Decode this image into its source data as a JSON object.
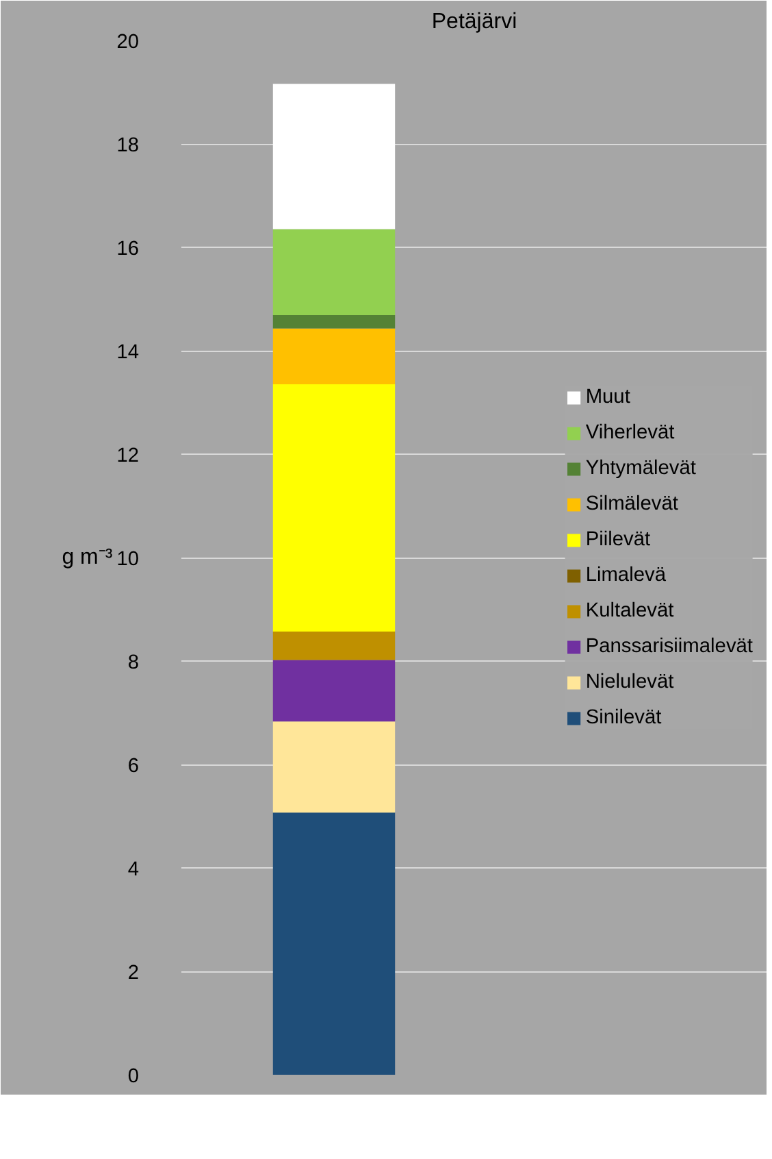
{
  "chart_data": {
    "type": "bar",
    "title": "Petäjärvi",
    "ylabel": "g m⁻³",
    "categories": [
      null
    ],
    "stacked": true,
    "ylim": [
      0,
      20
    ],
    "yticks": [
      0,
      2,
      4,
      6,
      8,
      10,
      12,
      14,
      16,
      18,
      20
    ],
    "grid": "y",
    "legend": "right",
    "series": [
      {
        "name": "Sinilevät",
        "color": "#1f4e79",
        "values": [
          5.07
        ]
      },
      {
        "name": "Nielulevät",
        "color": "#ffe699",
        "values": [
          1.76
        ]
      },
      {
        "name": "Panssarisiimalevät",
        "color": "#7030a0",
        "values": [
          1.19
        ]
      },
      {
        "name": "Kultalevät",
        "color": "#bf9000",
        "values": [
          0.55
        ]
      },
      {
        "name": "Limalevä",
        "color": "#7f6000",
        "values": [
          0
        ]
      },
      {
        "name": "Piilevät",
        "color": "#ffff00",
        "values": [
          4.78
        ]
      },
      {
        "name": "Silmälevät",
        "color": "#ffc000",
        "values": [
          1.08
        ]
      },
      {
        "name": "Yhtymälevät",
        "color": "#548235",
        "values": [
          0.26
        ]
      },
      {
        "name": "Viherlevät",
        "color": "#92d050",
        "values": [
          1.66
        ]
      },
      {
        "name": "Muut",
        "color": "#ffffff",
        "values": [
          2.81
        ]
      }
    ]
  }
}
